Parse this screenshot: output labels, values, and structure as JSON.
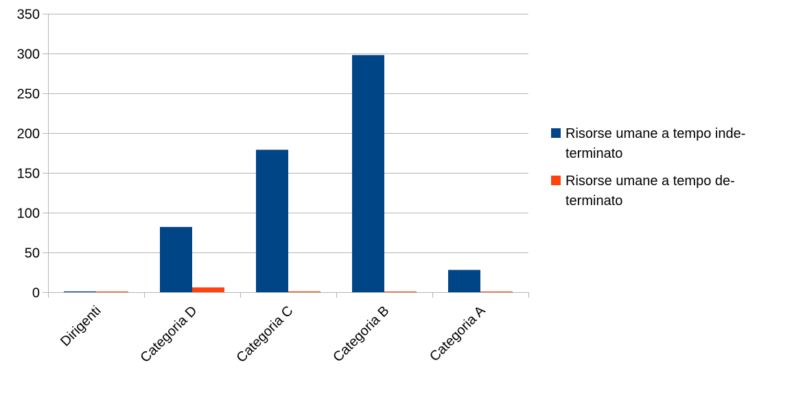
{
  "chart_data": {
    "type": "bar",
    "categories": [
      "Dirigenti",
      "Categoria D",
      "Categoria C",
      "Categoria B",
      "Categoria A"
    ],
    "series": [
      {
        "name": "Risorse umane a tempo indeterminato",
        "legend_lines": [
          "Risorse umane a tempo inde-",
          "terminato"
        ],
        "color": "#004586",
        "values": [
          1,
          82,
          179,
          298,
          28
        ]
      },
      {
        "name": "Risorse umane a tempo determinato",
        "legend_lines": [
          "Risorse umane a tempo de-",
          "terminato"
        ],
        "color": "#ff420e",
        "values": [
          0.4,
          6,
          1,
          0.4,
          0.4
        ]
      }
    ],
    "ylim": [
      0,
      350
    ],
    "yticks": [
      "0",
      "50",
      "100",
      "150",
      "200",
      "250",
      "300",
      "350"
    ],
    "ytick_values": [
      0,
      50,
      100,
      150,
      200,
      250,
      300,
      350
    ],
    "title": "",
    "xlabel": "",
    "ylabel": "",
    "grid": "horizontal",
    "legend_position": "right",
    "grid_color": "#b3b3b3"
  }
}
